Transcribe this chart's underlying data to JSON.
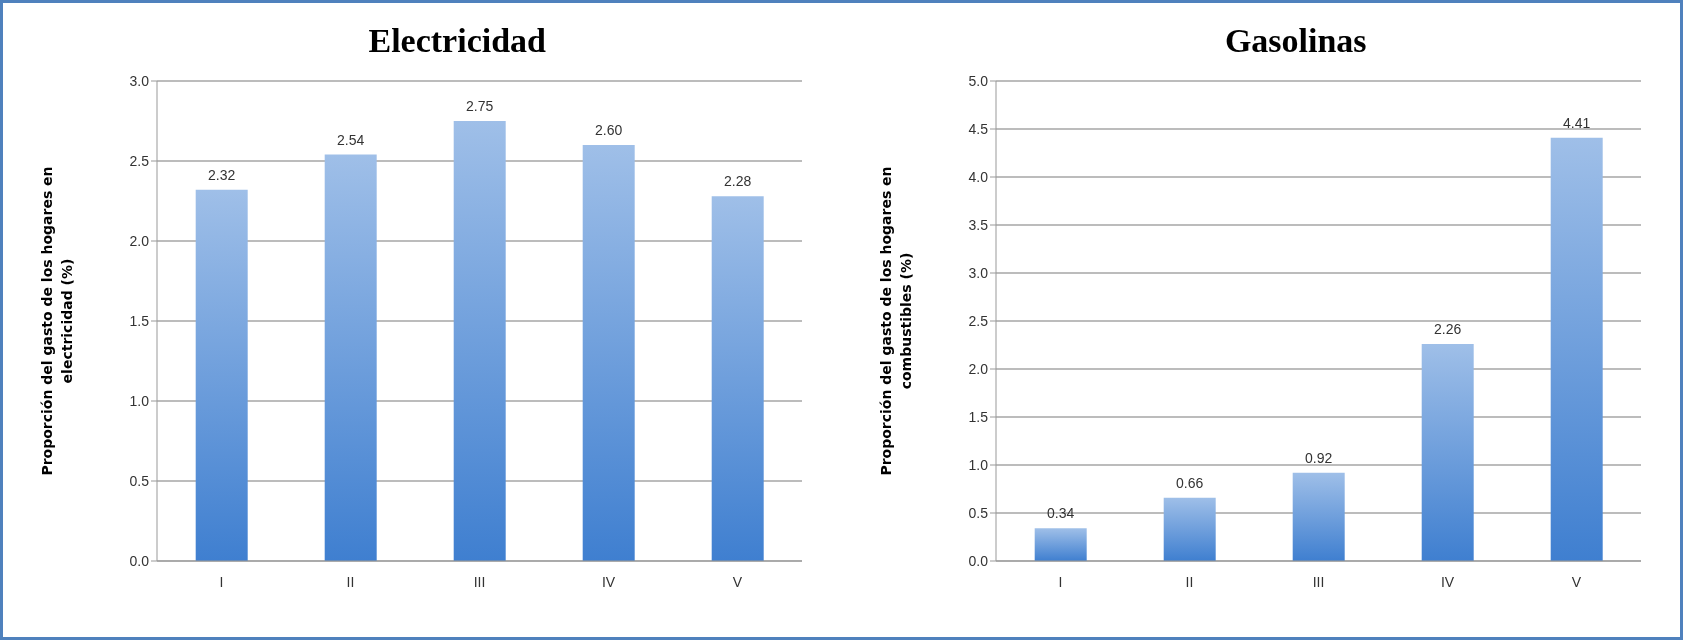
{
  "chart_data": [
    {
      "type": "bar",
      "title": "Electricidad",
      "ylabel": "Proporción del gasto de los hogares en electricidad  (%)",
      "categories": [
        "I",
        "II",
        "III",
        "IV",
        "V"
      ],
      "values": [
        2.32,
        2.54,
        2.75,
        2.6,
        2.28
      ],
      "value_labels": [
        "2.32",
        "2.54",
        "2.75",
        "2.60",
        "2.28"
      ],
      "color": "#3f7fd0",
      "ylim": [
        0,
        3
      ],
      "yticks": [
        {
          "value": 0,
          "label": "0.0"
        },
        0.5,
        {
          "value": 1,
          "label": "1.0"
        },
        1.5,
        {
          "value": 2,
          "label": "2.0"
        },
        2.5,
        {
          "value": 3,
          "label": "3.0"
        }
      ],
      "grid": "y"
    },
    {
      "type": "bar",
      "title": "Gasolinas",
      "ylabel": "Proporción del gasto de los hogares en combustibles  (%)",
      "categories": [
        "I",
        "II",
        "III",
        "IV",
        "V"
      ],
      "values": [
        0.34,
        0.66,
        0.92,
        2.26,
        4.41
      ],
      "value_labels": [
        "0.34",
        "0.66",
        "0.92",
        "2.26",
        "4.41"
      ],
      "color": "#3f7fd0",
      "ylim": [
        0,
        5
      ],
      "yticks": [
        {
          "value": 0,
          "label": "0.0"
        },
        0.5,
        {
          "value": 1,
          "label": "1.0"
        },
        1.5,
        {
          "value": 2,
          "label": "2.0"
        },
        2.5,
        {
          "value": 3,
          "label": "3.0"
        },
        3.5,
        {
          "value": 4,
          "label": "4.0"
        },
        4.5,
        {
          "value": 5,
          "label": "5.0"
        }
      ],
      "grid": "y"
    }
  ]
}
